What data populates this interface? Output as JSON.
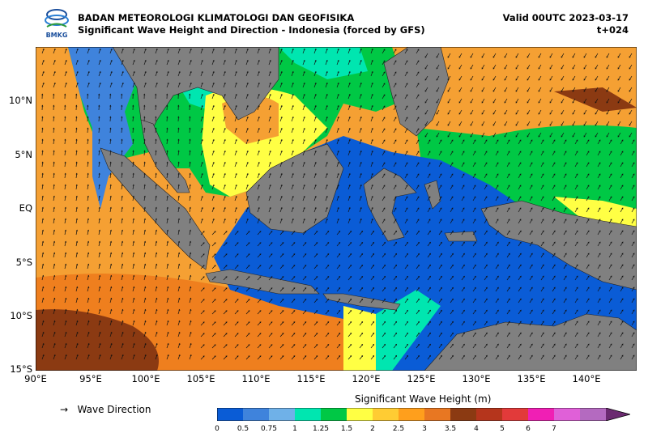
{
  "header": {
    "agency": "BADAN METEOROLOGI KLIMATOLOGI DAN GEOFISIKA",
    "product": "Significant Wave Height and Direction - Indonesia (forced by GFS)",
    "logo_text": "BMKG",
    "valid": "Valid 00UTC 2023-03-17",
    "lead": "t+024"
  },
  "axes": {
    "lat_labels": [
      "10°N",
      "5°N",
      "EQ",
      "5°S",
      "10°S",
      "15°S"
    ],
    "lon_labels": [
      "90°E",
      "95°E",
      "100°E",
      "105°E",
      "110°E",
      "115°E",
      "120°E",
      "125°E",
      "130°E",
      "135°E",
      "140°E"
    ]
  },
  "legend": {
    "arrow_glyph": "→",
    "direction_label": "Wave Direction",
    "colorbar_title": "Significant Wave Height (m)",
    "colors": [
      "#0a5cd6",
      "#3f83dc",
      "#6fb1e8",
      "#00e6b0",
      "#00c845",
      "#ffff44",
      "#ffcc33",
      "#ff9f1c",
      "#e87722",
      "#8b3a12",
      "#b5351c",
      "#e23a3a",
      "#f01fb4",
      "#e060d8",
      "#b46ac0"
    ],
    "ticks": [
      "0",
      "0.5",
      "0.75",
      "1",
      "1.25",
      "1.5",
      "2",
      "2.5",
      "3",
      "3.5",
      "4",
      "5",
      "6",
      "7"
    ]
  },
  "colors": {
    "land": "#808080",
    "ocean_default": "#f5a033"
  }
}
